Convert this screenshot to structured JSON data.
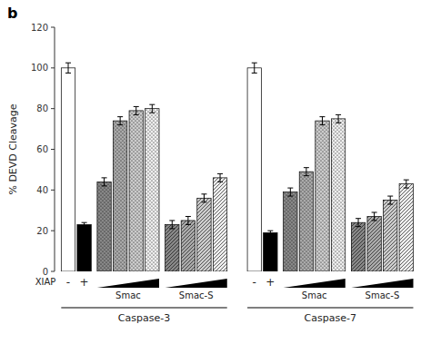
{
  "chart_data": {
    "type": "bar",
    "title": "b",
    "ylabel": "% DEVD Cleavage",
    "categories": [
      "-",
      "+",
      null,
      null,
      null,
      null,
      null,
      null,
      null,
      null,
      "-",
      "+",
      null,
      null,
      null,
      null,
      null,
      null,
      null,
      null
    ],
    "values": [
      100,
      23,
      44,
      74,
      79,
      80,
      23,
      25,
      36,
      46,
      100,
      19,
      39,
      49,
      74,
      75,
      24,
      27,
      35,
      43
    ],
    "errors": [
      2.5,
      1.0,
      2.0,
      2.0,
      2.0,
      2.0,
      2.0,
      2.0,
      2.0,
      2.0,
      2.5,
      1.0,
      2.0,
      2.0,
      2.0,
      2.0,
      2.0,
      2.0,
      2.0,
      2.0
    ],
    "colors": [
      "white",
      "black",
      "#888888",
      "#aaaaaa",
      "#cccccc",
      "#eeeeee",
      "#888888",
      "#aaaaaa",
      "#cccccc",
      "#eeeeee",
      "white",
      "black",
      "#888888",
      "#aaaaaa",
      "#cccccc",
      "#eeeeee",
      "#888888",
      "#aaaaaa",
      "#cccccc",
      "#eeeeee"
    ],
    "annotations": [
      "XIAP",
      "Smac",
      "Smac-S",
      "Smac",
      "Smac-S",
      "Caspase-3",
      "Caspase-7"
    ],
    "ylim": [
      0,
      120
    ],
    "yticks": [
      0,
      20,
      40,
      60,
      80,
      100,
      120
    ],
    "grid": false
  }
}
